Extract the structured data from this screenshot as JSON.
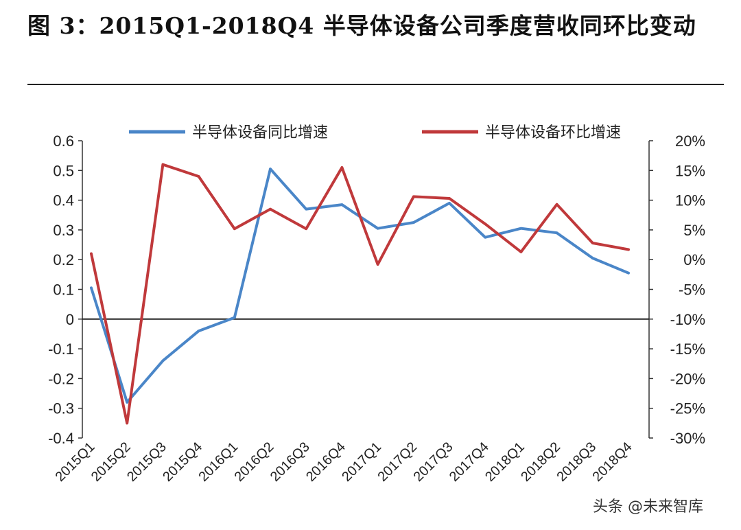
{
  "title": "图 3：2015Q1-2018Q4 半导体设备公司季度营收同环比变动",
  "watermark": "头条 @未来智库",
  "chart_data": {
    "type": "line",
    "title": "图 3：2015Q1-2018Q4 半导体设备公司季度营收同环比变动",
    "categories": [
      "2015Q1",
      "2015Q2",
      "2015Q3",
      "2015Q4",
      "2016Q1",
      "2016Q2",
      "2016Q3",
      "2016Q4",
      "2017Q1",
      "2017Q2",
      "2017Q3",
      "2017Q4",
      "2018Q1",
      "2018Q2",
      "2018Q3",
      "2018Q4"
    ],
    "legend_position": "top",
    "grid": false,
    "y_left": {
      "ticks": [
        0.6,
        0.5,
        0.4,
        0.3,
        0.2,
        0.1,
        0,
        -0.1,
        -0.2,
        -0.3,
        -0.4
      ],
      "tick_labels": [
        "0.6",
        "0.5",
        "0.4",
        "0.3",
        "0.2",
        "0.1",
        "0",
        "-0.1",
        "-0.2",
        "-0.3",
        "-0.4"
      ],
      "range": [
        -0.4,
        0.6
      ]
    },
    "y_right": {
      "ticks": [
        0.2,
        0.15,
        0.1,
        0.05,
        0,
        -0.05,
        -0.1,
        -0.15,
        -0.2,
        -0.25,
        -0.3
      ],
      "tick_labels": [
        "20%",
        "15%",
        "10%",
        "5%",
        "0%",
        "-5%",
        "-10%",
        "-15%",
        "-20%",
        "-25%",
        "-30%"
      ],
      "range": [
        -0.3,
        0.2
      ]
    },
    "series": [
      {
        "name": "半导体设备同比增速",
        "color": "#4a86c8",
        "axis": "left",
        "values": [
          0.105,
          -0.28,
          -0.14,
          -0.04,
          0.005,
          0.505,
          0.37,
          0.385,
          0.305,
          0.325,
          0.39,
          0.275,
          0.305,
          0.29,
          0.205,
          0.155
        ]
      },
      {
        "name": "半导体设备环比增速",
        "color": "#c0393b",
        "axis": "right",
        "values": [
          0.01,
          -0.275,
          0.16,
          0.14,
          0.052,
          0.085,
          0.052,
          0.155,
          -0.008,
          0.106,
          0.103,
          0.06,
          0.013,
          0.093,
          0.028,
          0.017
        ]
      }
    ]
  }
}
